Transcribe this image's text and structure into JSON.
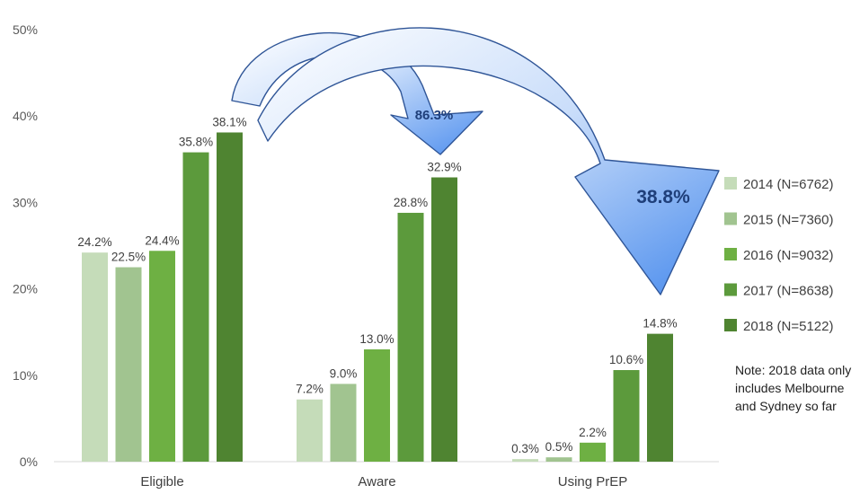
{
  "chart_data": {
    "type": "bar",
    "categories": [
      "Eligible",
      "Aware",
      "Using PrEP"
    ],
    "series": [
      {
        "name": "2014 (N=6762)",
        "values": [
          24.2,
          7.2,
          0.3
        ],
        "labels": [
          "24.2%",
          "7.2%",
          "0.3%"
        ],
        "color": "#c5dcb9"
      },
      {
        "name": "2015 (N=7360)",
        "values": [
          22.5,
          9.0,
          0.5
        ],
        "labels": [
          "22.5%",
          "9.0%",
          "0.5%"
        ],
        "color": "#a1c490"
      },
      {
        "name": "2016 (N=9032)",
        "values": [
          24.4,
          13.0,
          2.2
        ],
        "labels": [
          "24.4%",
          "13.0%",
          "2.2%"
        ],
        "color": "#6eb043"
      },
      {
        "name": "2017 (N=8638)",
        "values": [
          35.8,
          28.8,
          10.6
        ],
        "labels": [
          "35.8%",
          "28.8%",
          "10.6%"
        ],
        "color": "#5c9a3c"
      },
      {
        "name": "2018 (N=5122)",
        "values": [
          38.1,
          32.9,
          14.8
        ],
        "labels": [
          "38.1%",
          "32.9%",
          "14.8%"
        ],
        "color": "#4f8431"
      }
    ],
    "yticks": [
      "0%",
      "10%",
      "20%",
      "30%",
      "40%",
      "50%"
    ],
    "ylim": [
      0,
      50
    ],
    "grid": false,
    "legend_position": "right",
    "annotations": [
      {
        "text": "86.3%",
        "from": "Eligible",
        "to": "Aware"
      },
      {
        "text": "38.8%",
        "from": "Eligible",
        "to": "Using PrEP"
      }
    ],
    "arrow_color": "#5b9bf0"
  },
  "note": "Note: 2018 data only includes Melbourne and Sydney so far"
}
